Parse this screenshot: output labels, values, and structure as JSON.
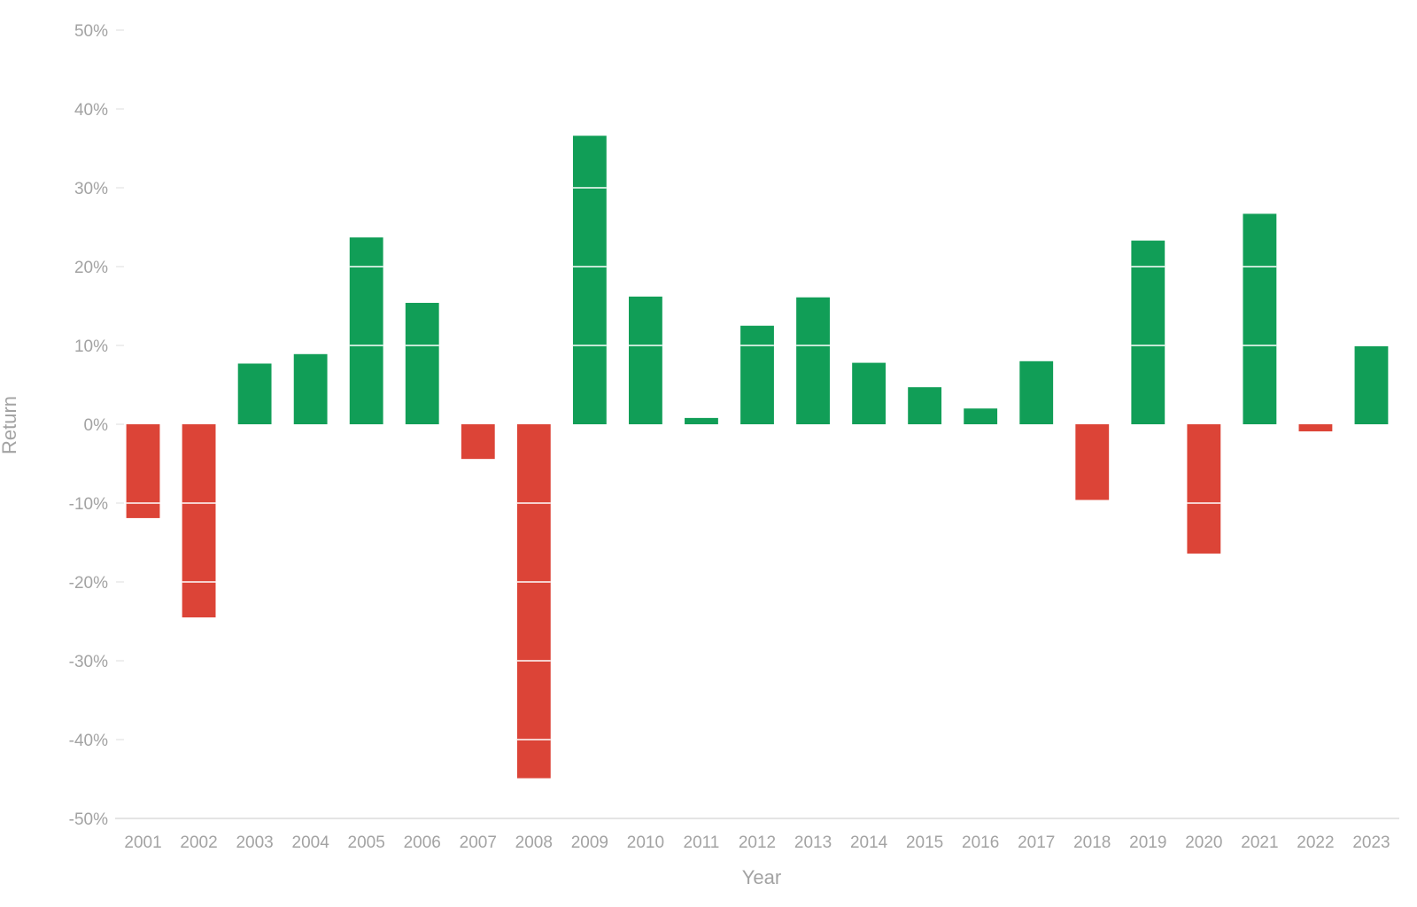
{
  "chart_data": {
    "type": "bar",
    "title": "",
    "xlabel": "Year",
    "ylabel": "Return",
    "ylim": [
      -50,
      50
    ],
    "y_ticks": [
      50,
      40,
      30,
      20,
      10,
      0,
      -10,
      -20,
      -30,
      -40,
      -50
    ],
    "y_tick_labels": [
      "50%",
      "40%",
      "30%",
      "20%",
      "10%",
      "0%",
      "-10%",
      "-20%",
      "-30%",
      "-40%",
      "-50%"
    ],
    "grid": false,
    "legend": "none",
    "categories": [
      "2001",
      "2002",
      "2003",
      "2004",
      "2005",
      "2006",
      "2007",
      "2008",
      "2009",
      "2010",
      "2011",
      "2012",
      "2013",
      "2014",
      "2015",
      "2016",
      "2017",
      "2018",
      "2019",
      "2020",
      "2021",
      "2022",
      "2023"
    ],
    "values": [
      -11.9,
      -24.5,
      7.7,
      8.9,
      23.7,
      15.4,
      -4.4,
      -44.9,
      36.6,
      16.2,
      0.8,
      12.5,
      16.1,
      7.8,
      4.7,
      2.0,
      8.0,
      -9.6,
      23.3,
      -16.4,
      26.7,
      -0.9,
      9.9
    ],
    "colors": {
      "positive": "#119e57",
      "negative": "#dc4437",
      "axis": "#dcdcdc",
      "text": "#a3a3a3",
      "band_separator": "#ffffff"
    }
  }
}
